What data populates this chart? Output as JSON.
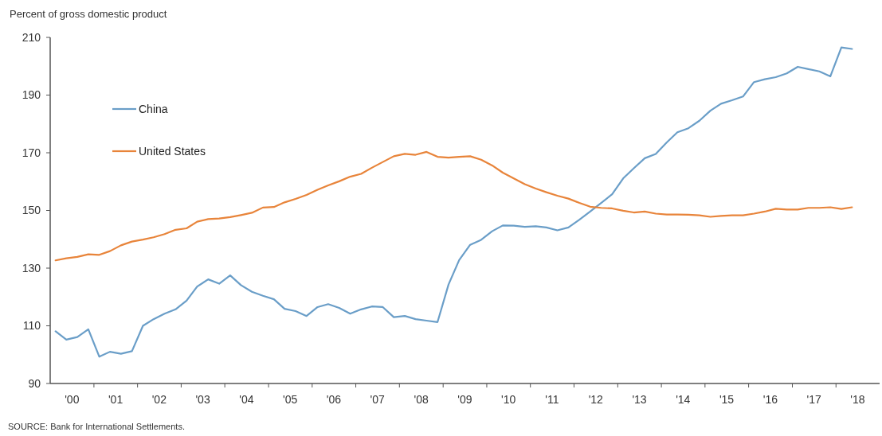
{
  "chart_data": {
    "type": "line",
    "ylabel": "Percent of gross domestic product",
    "annotations": [
      "SOURCE: Bank for International Settlements."
    ],
    "x": [
      "2000-02-15",
      "2000-05-15",
      "2000-08-15",
      "2000-11-15",
      "2001-02-15",
      "2001-05-15",
      "2001-08-15",
      "2001-11-15",
      "2002-02-15",
      "2002-05-15",
      "2002-08-15",
      "2002-11-15",
      "2003-02-15",
      "2003-05-15",
      "2003-08-15",
      "2003-11-15",
      "2004-02-15",
      "2004-05-15",
      "2004-08-15",
      "2004-11-15",
      "2005-02-15",
      "2005-05-15",
      "2005-08-15",
      "2005-11-15",
      "2006-02-15",
      "2006-05-15",
      "2006-08-15",
      "2006-11-15",
      "2007-02-15",
      "2007-05-15",
      "2007-08-15",
      "2007-11-15",
      "2008-02-15",
      "2008-05-15",
      "2008-08-15",
      "2008-11-15",
      "2009-02-15",
      "2009-05-15",
      "2009-08-15",
      "2009-11-15",
      "2010-02-15",
      "2010-05-15",
      "2010-08-15",
      "2010-11-15",
      "2011-02-15",
      "2011-05-15",
      "2011-08-15",
      "2011-11-15",
      "2012-02-15",
      "2012-05-15",
      "2012-08-15",
      "2012-11-15",
      "2013-02-15",
      "2013-05-15",
      "2013-08-15",
      "2013-11-15",
      "2014-02-15",
      "2014-05-15",
      "2014-08-15",
      "2014-11-15",
      "2015-02-15",
      "2015-05-15",
      "2015-08-15",
      "2015-11-15",
      "2016-02-15",
      "2016-05-15",
      "2016-08-15",
      "2016-11-15",
      "2017-02-15",
      "2017-05-15",
      "2017-08-15",
      "2017-11-15",
      "2018-02-15",
      "2018-05-15"
    ],
    "series": [
      {
        "name": "China",
        "color": "#6a9ec8",
        "values": [
          108.1,
          105.2,
          106.1,
          108.8,
          99.3,
          101,
          100.3,
          101.2,
          110,
          112.3,
          114.2,
          115.7,
          118.7,
          123.6,
          126.1,
          124.6,
          127.5,
          124.1,
          121.8,
          120.4,
          119.2,
          115.9,
          115.1,
          113.4,
          116.5,
          117.5,
          116.2,
          114.2,
          115.7,
          116.7,
          116.5,
          113,
          113.4,
          112.3,
          111.8,
          111.3,
          124.3,
          132.8,
          138.1,
          139.8,
          142.8,
          144.8,
          144.7,
          144.3,
          144.5,
          144.1,
          143.1,
          144.1,
          146.8,
          149.6,
          152.6,
          155.6,
          161.1,
          164.6,
          168.1,
          169.6,
          173.6,
          177.1,
          178.5,
          181.1,
          184.6,
          187,
          188.2,
          189.5,
          194.5,
          195.5,
          196.2,
          197.5,
          199.8,
          199,
          198.2,
          196.5,
          206.5,
          206
        ]
      },
      {
        "name": "United States",
        "color": "#e8843a",
        "values": [
          132.7,
          133.4,
          133.9,
          134.8,
          134.6,
          135.9,
          137.9,
          139.2,
          139.9,
          140.7,
          141.8,
          143.3,
          143.8,
          146.1,
          147,
          147.2,
          147.7,
          148.4,
          149.2,
          151,
          151.2,
          152.8,
          154,
          155.4,
          157.2,
          158.7,
          160.1,
          161.7,
          162.7,
          164.8,
          166.8,
          168.8,
          169.6,
          169.3,
          170.3,
          168.6,
          168.3,
          168.6,
          168.8,
          167.6,
          165.6,
          163.1,
          161.1,
          159.1,
          157.6,
          156.3,
          155.1,
          154.1,
          152.6,
          151.3,
          150.9,
          150.7,
          149.9,
          149.3,
          149.6,
          148.9,
          148.6,
          148.6,
          148.5,
          148.3,
          147.8,
          148.1,
          148.3,
          148.3,
          148.9,
          149.6,
          150.6,
          150.3,
          150.3,
          150.9,
          150.9,
          151.1,
          150.5,
          151.1
        ]
      }
    ],
    "xlim": [
      "2000",
      "2019"
    ],
    "xticks": [
      {
        "value": "2000-07-01",
        "label": "'00"
      },
      {
        "value": "2001-01-01",
        "label": null
      },
      {
        "value": "2001-07-01",
        "label": "'01"
      },
      {
        "value": "2002-01-01",
        "label": null
      },
      {
        "value": "2002-07-01",
        "label": "'02"
      },
      {
        "value": "2003-01-01",
        "label": null
      },
      {
        "value": "2003-07-01",
        "label": "'03"
      },
      {
        "value": "2004-01-01",
        "label": null
      },
      {
        "value": "2004-07-01",
        "label": "'04"
      },
      {
        "value": "2005-01-01",
        "label": null
      },
      {
        "value": "2005-07-01",
        "label": "'05"
      },
      {
        "value": "2006-01-01",
        "label": null
      },
      {
        "value": "2006-07-01",
        "label": "'06"
      },
      {
        "value": "2007-01-01",
        "label": null
      },
      {
        "value": "2007-07-01",
        "label": "'07"
      },
      {
        "value": "2008-01-01",
        "label": null
      },
      {
        "value": "2008-07-01",
        "label": "'08"
      },
      {
        "value": "2009-01-01",
        "label": null
      },
      {
        "value": "2009-07-01",
        "label": "'09"
      },
      {
        "value": "2010-01-01",
        "label": null
      },
      {
        "value": "2010-07-01",
        "label": "'10"
      },
      {
        "value": "2011-01-01",
        "label": null
      },
      {
        "value": "2011-07-01",
        "label": "'11"
      },
      {
        "value": "2012-01-01",
        "label": null
      },
      {
        "value": "2012-07-01",
        "label": "'12"
      },
      {
        "value": "2013-01-01",
        "label": null
      },
      {
        "value": "2013-07-01",
        "label": "'13"
      },
      {
        "value": "2014-01-01",
        "label": null
      },
      {
        "value": "2014-07-01",
        "label": "'14"
      },
      {
        "value": "2015-01-01",
        "label": null
      },
      {
        "value": "2015-07-01",
        "label": "'15"
      },
      {
        "value": "2016-01-01",
        "label": null
      },
      {
        "value": "2016-07-01",
        "label": "'16"
      },
      {
        "value": "2017-01-01",
        "label": null
      },
      {
        "value": "2017-07-01",
        "label": "'17"
      },
      {
        "value": "2018-01-01",
        "label": null
      },
      {
        "value": "2018-07-01",
        "label": "'18"
      }
    ],
    "ylim": [
      90,
      210
    ],
    "yticks": [
      90,
      110,
      130,
      150,
      170,
      190,
      210
    ],
    "grid": false,
    "legend": "top left"
  }
}
